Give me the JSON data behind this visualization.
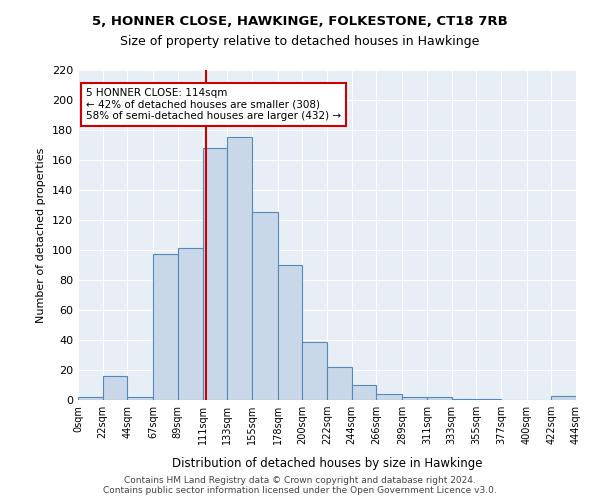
{
  "title1": "5, HONNER CLOSE, HAWKINGE, FOLKESTONE, CT18 7RB",
  "title2": "Size of property relative to detached houses in Hawkinge",
  "xlabel": "Distribution of detached houses by size in Hawkinge",
  "ylabel": "Number of detached properties",
  "bin_edges": [
    0,
    22,
    44,
    67,
    89,
    111,
    133,
    155,
    178,
    200,
    222,
    244,
    266,
    289,
    311,
    333,
    355,
    377,
    400,
    422,
    444
  ],
  "bar_heights": [
    2,
    16,
    2,
    97,
    101,
    168,
    175,
    125,
    90,
    39,
    22,
    10,
    4,
    2,
    2,
    1,
    1,
    0,
    0,
    3
  ],
  "bar_color": "#c8d8e8",
  "bar_edge_color": "#5588bb",
  "property_size": 114,
  "vline_color": "#cc0000",
  "annotation_text": "5 HONNER CLOSE: 114sqm\n← 42% of detached houses are smaller (308)\n58% of semi-detached houses are larger (432) →",
  "annotation_box_color": "#ffffff",
  "annotation_box_edge_color": "#cc0000",
  "ylim": [
    0,
    220
  ],
  "yticks": [
    0,
    20,
    40,
    60,
    80,
    100,
    120,
    140,
    160,
    180,
    200,
    220
  ],
  "background_color": "#e8eef5",
  "footer_text": "Contains HM Land Registry data © Crown copyright and database right 2024.\nContains public sector information licensed under the Open Government Licence v3.0.",
  "tick_labels": [
    "0sqm",
    "22sqm",
    "44sqm",
    "67sqm",
    "89sqm",
    "111sqm",
    "133sqm",
    "155sqm",
    "178sqm",
    "200sqm",
    "222sqm",
    "244sqm",
    "266sqm",
    "289sqm",
    "311sqm",
    "333sqm",
    "355sqm",
    "377sqm",
    "400sqm",
    "422sqm",
    "444sqm"
  ]
}
